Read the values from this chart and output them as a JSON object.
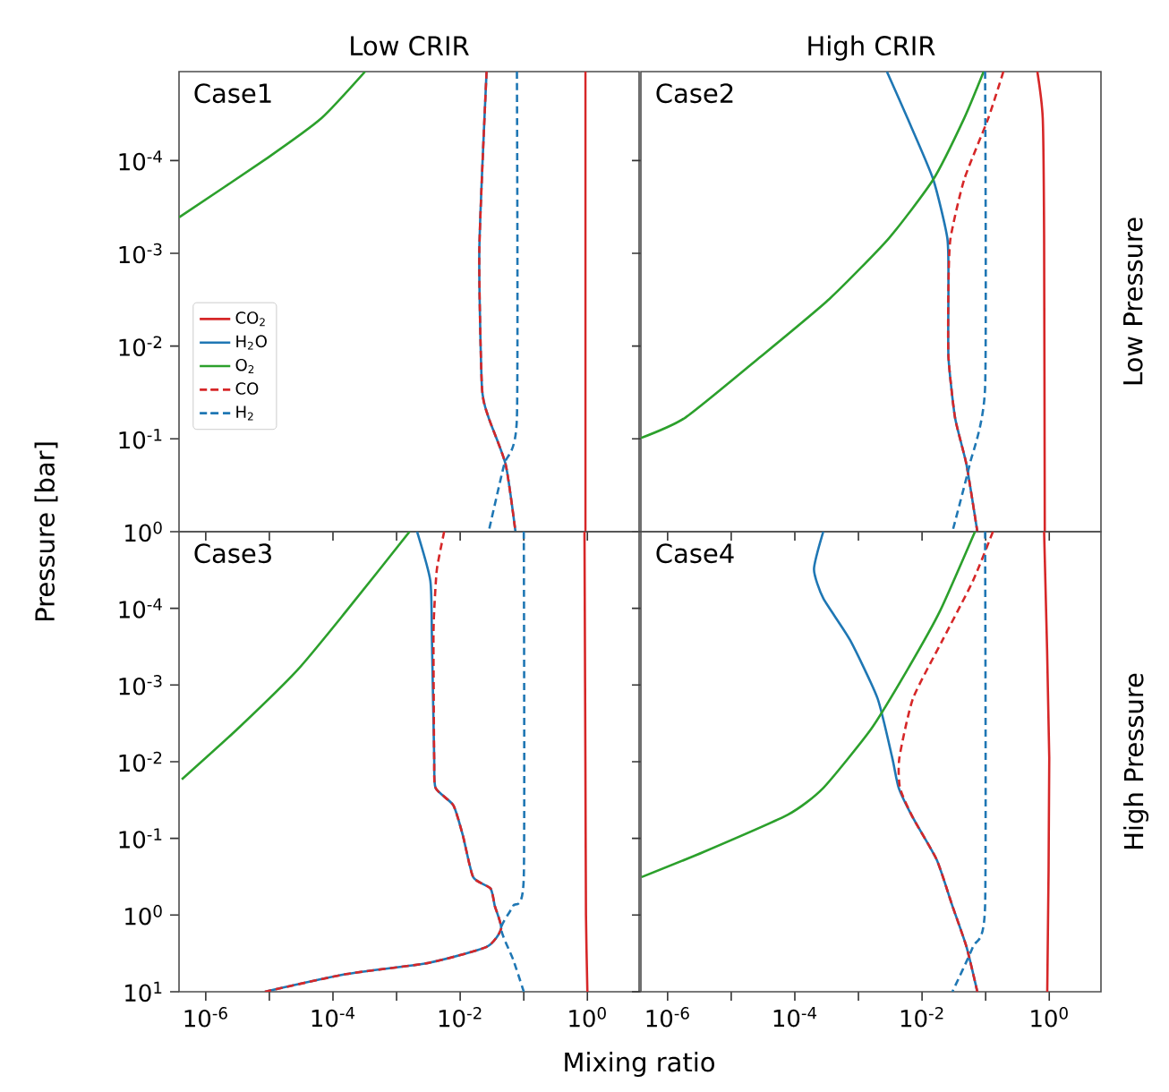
{
  "chart_data": [
    {
      "type": "line",
      "title": "Low CRIR",
      "ylabel": "Pressure [bar]",
      "annotations": [
        "Case1"
      ],
      "log": "xy",
      "legend": "left",
      "tick_labels": "y",
      "xlim": [
        3.8e-07,
        6.5
      ],
      "ylim": [
        1,
        1.1e-05
      ],
      "xticks": [
        {
          "value": 1e-06,
          "label": null
        },
        {
          "value": 1e-05,
          "label": null
        },
        {
          "value": 0.0001,
          "label": null
        },
        {
          "value": 0.001,
          "label": null
        },
        {
          "value": 0.01,
          "label": null
        },
        {
          "value": 0.1,
          "label": null
        },
        {
          "value": 1,
          "label": null
        }
      ],
      "yticks": [
        {
          "value": 0.0001,
          "label": "10$^{-4}$"
        },
        {
          "value": 0.001,
          "label": "10$^{-3}$"
        },
        {
          "value": 0.01,
          "label": "10$^{-2}$"
        },
        {
          "value": 0.1,
          "label": "10$^{-1}$"
        },
        {
          "value": 1,
          "label": "10$^{0}$"
        }
      ],
      "series": [
        {
          "name": "CO$_{2}$",
          "color": "#d62728",
          "x": [
            0.93,
            0.93,
            0.93,
            0.93
          ],
          "values": [
            1.1e-05,
            0.001,
            0.1,
            1
          ]
        },
        {
          "name": "H$_{2}$O",
          "color": "#1f77b4",
          "x": [
            0.026,
            0.02,
            0.022,
            0.028,
            0.052,
            0.074
          ],
          "values": [
            1.1e-05,
            0.00093,
            0.028,
            0.059,
            0.19,
            1
          ]
        },
        {
          "name": "O$_{2}$",
          "color": "#2ca02c",
          "x": [
            3.8e-07,
            9.5e-06,
            6.6e-05,
            0.00032
          ],
          "values": [
            0.00041,
            9.3e-05,
            3.5e-05,
            1.1e-05
          ]
        },
        {
          "name": "CO",
          "color": "#d62728",
          "line_style": "dashed",
          "x": [
            0.026,
            0.02,
            0.022,
            0.028,
            0.052,
            0.074
          ],
          "values": [
            1.1e-05,
            0.00093,
            0.028,
            0.059,
            0.19,
            1
          ]
        },
        {
          "name": "H$_{2}$",
          "color": "#1f77b4",
          "line_style": "dashed",
          "x": [
            0.078,
            0.078,
            0.049,
            0.028
          ],
          "values": [
            1.1e-05,
            0.059,
            0.19,
            1
          ]
        }
      ]
    },
    {
      "type": "line",
      "title": "High CRIR",
      "y2label": "Low Pressure",
      "annotations": [
        "Case2"
      ],
      "log": "xy",
      "tick_labels": false,
      "xlim": [
        3.8e-07,
        6.5
      ],
      "ylim": [
        1,
        1.1e-05
      ],
      "xticks": [
        {
          "value": 1e-06,
          "label": null
        },
        {
          "value": 1e-05,
          "label": null
        },
        {
          "value": 0.0001,
          "label": null
        },
        {
          "value": 0.001,
          "label": null
        },
        {
          "value": 0.01,
          "label": null
        },
        {
          "value": 0.1,
          "label": null
        },
        {
          "value": 1,
          "label": null
        }
      ],
      "yticks": [
        {
          "value": 0.0001,
          "label": null
        },
        {
          "value": 0.001,
          "label": null
        },
        {
          "value": 0.01,
          "label": null
        },
        {
          "value": 0.1,
          "label": null
        },
        {
          "value": 1,
          "label": null
        }
      ],
      "series": [
        {
          "color": "#d62728",
          "x": [
            0.65,
            0.79,
            0.83,
            0.85
          ],
          "values": [
            1.1e-05,
            3.5e-05,
            0.00069,
            1
          ]
        },
        {
          "color": "#1f77b4",
          "x": [
            0.0028,
            0.0059,
            0.015,
            0.025,
            0.026,
            0.026,
            0.033,
            0.05,
            0.074
          ],
          "values": [
            1.1e-05,
            3.5e-05,
            0.00016,
            0.00069,
            0.0023,
            0.013,
            0.059,
            0.19,
            1
          ]
        },
        {
          "color": "#2ca02c",
          "x": [
            3.8e-07,
            1.9e-06,
            2.9e-05,
            0.00035,
            0.003,
            0.015,
            0.046,
            0.093
          ],
          "values": [
            0.098,
            0.059,
            0.013,
            0.0031,
            0.00069,
            0.00016,
            3.5e-05,
            1.1e-05
          ]
        },
        {
          "color": "#d62728",
          "line_style": "dashed",
          "x": [
            0.19,
            0.11,
            0.046,
            0.028,
            0.026,
            0.026,
            0.033,
            0.05,
            0.074
          ],
          "values": [
            1.1e-05,
            3.5e-05,
            0.00016,
            0.00069,
            0.0023,
            0.013,
            0.059,
            0.19,
            1
          ]
        },
        {
          "color": "#1f77b4",
          "line_style": "dashed",
          "x": [
            0.098,
            0.098,
            0.056,
            0.03
          ],
          "values": [
            1.1e-05,
            0.028,
            0.19,
            1
          ]
        }
      ]
    },
    {
      "type": "line",
      "xlabel": "Mixing ratio",
      "annotations": [
        "Case3"
      ],
      "log": "xy",
      "xlim": [
        3.8e-07,
        6.5
      ],
      "ylim": [
        10,
        1e-05
      ],
      "xticks": [
        {
          "value": 1e-06,
          "label": "10$^{-6}$"
        },
        {
          "value": 1e-05,
          "label": null
        },
        {
          "value": 0.0001,
          "label": "10$^{-4}$"
        },
        {
          "value": 0.001,
          "label": null
        },
        {
          "value": 0.01,
          "label": "10$^{-2}$"
        },
        {
          "value": 0.1,
          "label": null
        },
        {
          "value": 1,
          "label": "10$^{0}$"
        }
      ],
      "yticks": [
        {
          "value": 0.0001,
          "label": "10$^{-4}$"
        },
        {
          "value": 0.001,
          "label": "10$^{-3}$"
        },
        {
          "value": 0.01,
          "label": "10$^{-2}$"
        },
        {
          "value": 0.1,
          "label": "10$^{-1}$"
        },
        {
          "value": 1,
          "label": "10$^{0}$"
        },
        {
          "value": 10,
          "label": "10$^{1}$"
        }
      ],
      "series": [
        {
          "color": "#d62728",
          "x": [
            0.9,
            0.93,
            0.95,
            1.0
          ],
          "values": [
            1e-05,
            0.01,
            1,
            10
          ]
        },
        {
          "color": "#1f77b4",
          "x": [
            0.0021,
            0.0034,
            0.0036,
            0.0039,
            0.0041,
            0.0078,
            0.011,
            0.016,
            0.03,
            0.035,
            0.044,
            0.026,
            0.0032,
            0.00016,
            8.5e-06
          ],
          "values": [
            1e-05,
            4.4e-05,
            0.00026,
            0.0089,
            0.022,
            0.037,
            0.091,
            0.32,
            0.45,
            0.76,
            1.5,
            2.6,
            4.2,
            5.9,
            10
          ]
        },
        {
          "color": "#2ca02c",
          "x": [
            4.2e-07,
            3.2e-06,
            2.8e-05,
            0.00016,
            0.0016
          ],
          "values": [
            0.017,
            0.0037,
            0.00063,
            0.00011,
            1e-05
          ]
        },
        {
          "color": "#d62728",
          "line_style": "dashed",
          "x": [
            0.0056,
            0.0043,
            0.0039,
            0.0038,
            0.0039,
            0.0041,
            0.0078,
            0.011,
            0.016,
            0.03,
            0.035,
            0.044,
            0.026,
            0.0032,
            0.00016,
            8.5e-06
          ],
          "values": [
            1e-05,
            3.1e-05,
            0.00011,
            0.00026,
            0.0089,
            0.022,
            0.037,
            0.091,
            0.32,
            0.45,
            0.76,
            1.5,
            2.6,
            4.2,
            5.9,
            10
          ]
        },
        {
          "color": "#1f77b4",
          "line_style": "dashed",
          "x": [
            0.1,
            0.1,
            0.068,
            0.044,
            0.068,
            0.1
          ],
          "values": [
            1e-05,
            0.32,
            0.76,
            1.5,
            3.8,
            10
          ]
        }
      ]
    },
    {
      "type": "line",
      "y2label": "High Pressure",
      "annotations": [
        "Case4"
      ],
      "log": "xy",
      "tick_labels": "x",
      "xlim": [
        3.8e-07,
        6.5
      ],
      "ylim": [
        10,
        1e-05
      ],
      "xticks": [
        {
          "value": 1e-06,
          "label": "10$^{-6}$"
        },
        {
          "value": 1e-05,
          "label": null
        },
        {
          "value": 0.0001,
          "label": "10$^{-4}$"
        },
        {
          "value": 0.001,
          "label": null
        },
        {
          "value": 0.01,
          "label": "10$^{-2}$"
        },
        {
          "value": 0.1,
          "label": null
        },
        {
          "value": 1,
          "label": "10$^{0}$"
        }
      ],
      "yticks": [
        {
          "value": 0.0001,
          "label": null
        },
        {
          "value": 0.001,
          "label": null
        },
        {
          "value": 0.01,
          "label": null
        },
        {
          "value": 0.1,
          "label": null
        },
        {
          "value": 1,
          "label": null
        },
        {
          "value": 10,
          "label": null
        }
      ],
      "series": [
        {
          "color": "#d62728",
          "x": [
            0.83,
            1.0,
            0.93
          ],
          "values": [
            1e-05,
            0.0089,
            10
          ]
        },
        {
          "color": "#1f77b4",
          "x": [
            0.00028,
            0.0002,
            0.00028,
            0.00074,
            0.002,
            0.0034,
            0.0043,
            0.0072,
            0.017,
            0.03,
            0.05,
            0.074
          ],
          "values": [
            1e-05,
            3.1e-05,
            7.4e-05,
            0.00026,
            0.0015,
            0.0089,
            0.022,
            0.054,
            0.19,
            0.76,
            2.6,
            10
          ]
        },
        {
          "color": "#2ca02c",
          "x": [
            3.9e-07,
            3.7e-06,
            7.8e-05,
            0.00028,
            0.0016,
            0.0059,
            0.019,
            0.068
          ],
          "values": [
            0.32,
            0.15,
            0.049,
            0.022,
            0.0037,
            0.00063,
            0.00011,
            1e-05
          ]
        },
        {
          "color": "#d62728",
          "line_style": "dashed",
          "x": [
            0.13,
            0.063,
            0.021,
            0.0072,
            0.0044,
            0.0045,
            0.0072,
            0.017,
            0.03,
            0.05,
            0.074
          ],
          "values": [
            1e-05,
            4.4e-05,
            0.00026,
            0.0015,
            0.0089,
            0.022,
            0.054,
            0.19,
            0.76,
            2.6,
            10
          ]
        },
        {
          "color": "#1f77b4",
          "line_style": "dashed",
          "x": [
            0.098,
            0.098,
            0.063,
            0.03
          ],
          "values": [
            1e-05,
            0.76,
            2.6,
            10
          ]
        }
      ]
    }
  ]
}
